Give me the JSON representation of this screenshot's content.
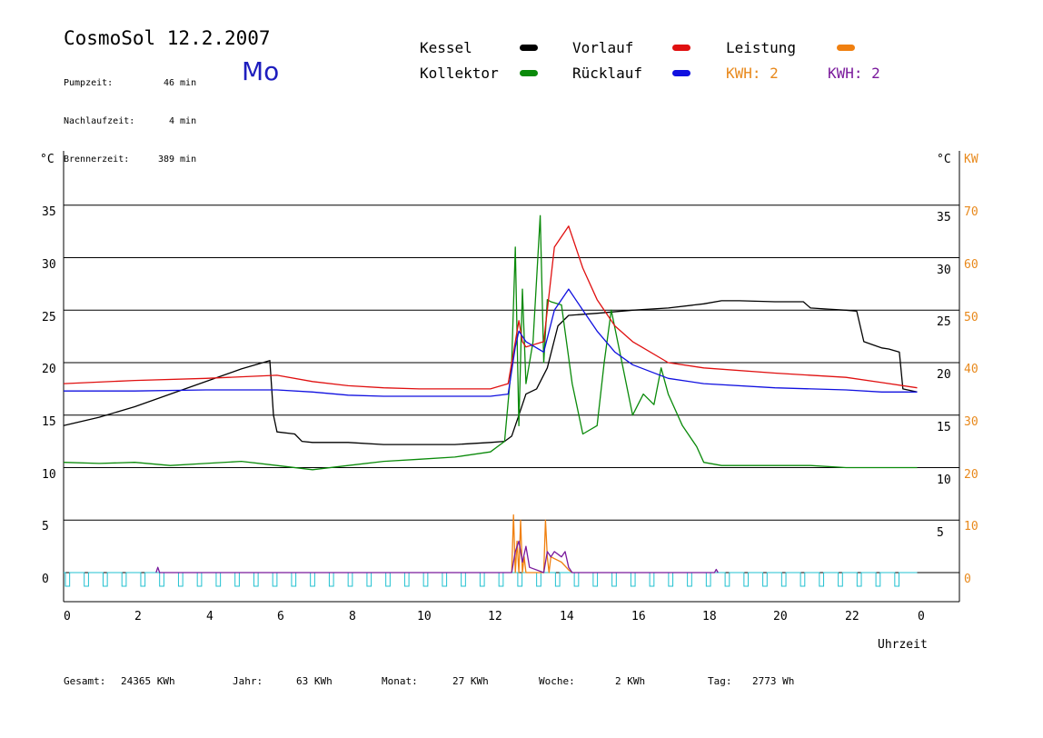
{
  "header": {
    "title": "CosmoSol 12.2.2007",
    "day": "Mo",
    "stats": [
      {
        "label": "Pumpzeit:",
        "value": "46",
        "unit": "min"
      },
      {
        "label": "Nachlaufzeit:",
        "value": "4",
        "unit": "min"
      },
      {
        "label": "Brennerzeit:",
        "value": "389",
        "unit": "min"
      }
    ]
  },
  "legend": {
    "kessel": {
      "label": "Kessel",
      "color": "#000000"
    },
    "kollektor": {
      "label": "Kollektor",
      "color": "#0a8a0a"
    },
    "vorlauf": {
      "label": "Vorlauf",
      "color": "#e01010"
    },
    "ruecklauf": {
      "label": "Rücklauf",
      "color": "#1010e0"
    },
    "leistung": {
      "label": "Leistung",
      "color": "#f08010"
    },
    "kwh1": "KWH: 2",
    "kwh2": "KWH: 2"
  },
  "axes": {
    "y_left_unit": "°C",
    "y_right_unit": "°C",
    "y_kw_unit": "KW",
    "x_label": "Uhrzeit",
    "x_ticks": [
      "0",
      "2",
      "4",
      "6",
      "8",
      "10",
      "12",
      "14",
      "16",
      "18",
      "20",
      "22",
      "0"
    ],
    "y_left_ticks": [
      "35",
      "30",
      "25",
      "20",
      "15",
      "10",
      "5",
      "0"
    ],
    "y_right_ticks": [
      "35",
      "30",
      "25",
      "20",
      "15",
      "10",
      "5"
    ],
    "kw_ticks": [
      "70",
      "60",
      "50",
      "40",
      "30",
      "20",
      "10",
      "0"
    ]
  },
  "footer": {
    "gesamt_label": "Gesamt:",
    "gesamt_value": "24365 KWh",
    "jahr_label": "Jahr:",
    "jahr_value": "63 KWh",
    "monat_label": "Monat:",
    "monat_value": "27 KWh",
    "woche_label": "Woche:",
    "woche_value": "2 KWh",
    "tag_label": "Tag:",
    "tag_value": "2773 Wh"
  },
  "chart_data": {
    "type": "line",
    "xlabel": "Uhrzeit",
    "ylabel": "°C",
    "xlim": [
      0,
      24
    ],
    "ylim": [
      0,
      40
    ],
    "y2lim": [
      0,
      80
    ],
    "grid": true,
    "series": [
      {
        "name": "Kessel",
        "color": "#000000",
        "x": [
          0,
          1,
          2,
          3,
          4,
          5,
          5.8,
          5.9,
          6,
          6.5,
          6.7,
          7,
          8,
          9,
          10,
          11,
          12,
          12.4,
          12.6,
          12.8,
          13,
          13.3,
          13.6,
          13.9,
          14.2,
          15,
          16,
          17,
          18,
          18.5,
          19,
          20,
          20.8,
          21,
          21.5,
          22,
          22.3,
          22.5,
          23,
          23.2,
          23.5,
          23.6,
          24
        ],
        "y": [
          14,
          14.8,
          15.8,
          17,
          18.2,
          19.4,
          20.2,
          15,
          13.4,
          13.2,
          12.5,
          12.4,
          12.4,
          12.2,
          12.2,
          12.2,
          12.4,
          12.5,
          13,
          15,
          17,
          17.5,
          19.5,
          23.5,
          24.5,
          24.7,
          25,
          25.2,
          25.6,
          25.9,
          25.9,
          25.8,
          25.8,
          25.2,
          25.1,
          25,
          24.9,
          22,
          21.4,
          21.3,
          21,
          17.5,
          17.2
        ]
      },
      {
        "name": "Kollektor",
        "color": "#0a8a0a",
        "x": [
          0,
          1,
          2,
          3,
          4,
          5,
          6,
          7,
          8,
          9,
          10,
          11,
          12,
          12.4,
          12.6,
          12.7,
          12.8,
          12.9,
          13,
          13.2,
          13.4,
          13.5,
          13.6,
          13.7,
          14,
          14.3,
          14.6,
          15,
          15.2,
          15.4,
          15.7,
          16,
          16.3,
          16.6,
          16.8,
          17,
          17.4,
          17.8,
          18,
          18.5,
          19,
          20,
          21,
          22,
          23,
          24
        ],
        "y": [
          10.5,
          10.4,
          10.5,
          10.2,
          10.4,
          10.6,
          10.2,
          9.8,
          10.2,
          10.6,
          10.8,
          11,
          11.5,
          12.5,
          20,
          31,
          14,
          27,
          18,
          22,
          34,
          20,
          26,
          25.8,
          25.5,
          18,
          13.2,
          14,
          20,
          25,
          20,
          15,
          17,
          16,
          19.5,
          17,
          14,
          12,
          10.5,
          10.2,
          10.2,
          10.2,
          10.2,
          10,
          10,
          10
        ]
      },
      {
        "name": "Vorlauf",
        "color": "#e01010",
        "x": [
          0,
          2,
          4,
          6,
          7,
          8,
          9,
          10,
          11,
          12,
          12.5,
          12.7,
          12.8,
          12.9,
          13,
          13.5,
          13.8,
          14,
          14.2,
          14.6,
          15,
          15.5,
          16,
          17,
          18,
          20,
          22,
          23,
          24
        ],
        "y": [
          18,
          18.3,
          18.5,
          18.8,
          18.2,
          17.8,
          17.6,
          17.5,
          17.5,
          17.5,
          18,
          22,
          24,
          22,
          21.5,
          22,
          31,
          32,
          33,
          29,
          26,
          23.5,
          22,
          20,
          19.5,
          19,
          18.6,
          18.1,
          17.6
        ]
      },
      {
        "name": "Rücklauf",
        "color": "#1010e0",
        "x": [
          0,
          2,
          4,
          6,
          7,
          8,
          9,
          10,
          11,
          12,
          12.5,
          12.7,
          12.8,
          12.9,
          13,
          13.5,
          13.8,
          14,
          14.2,
          14.6,
          15,
          15.5,
          16,
          17,
          18,
          20,
          22,
          23,
          24
        ],
        "y": [
          17.3,
          17.3,
          17.4,
          17.4,
          17.2,
          16.9,
          16.8,
          16.8,
          16.8,
          16.8,
          17,
          21.5,
          23,
          22.5,
          22,
          21,
          25,
          26,
          27,
          25,
          23,
          21,
          19.8,
          18.5,
          18,
          17.6,
          17.4,
          17.2,
          17.2
        ]
      },
      {
        "name": "Leistung",
        "color": "#f08010",
        "x": [
          12.6,
          12.65,
          12.7,
          12.75,
          12.8,
          12.85,
          12.9,
          12.95,
          13,
          13.5,
          13.55,
          13.6,
          13.65,
          13.7,
          14,
          14.2,
          14.3
        ],
        "y": [
          0,
          11,
          0,
          6,
          0,
          10,
          0,
          3,
          0,
          0,
          10,
          3,
          0,
          3,
          2,
          0.5,
          0
        ]
      },
      {
        "name": "KWH",
        "color": "#7a1a9c",
        "x": [
          2.6,
          2.65,
          2.7,
          12.6,
          12.7,
          12.8,
          12.9,
          13,
          13.1,
          13.5,
          13.6,
          13.7,
          13.8,
          14,
          14.1,
          14.2,
          14.3,
          18.3,
          18.35,
          18.4
        ],
        "y": [
          0,
          0.5,
          0,
          0,
          2,
          3,
          1,
          2.5,
          0.5,
          0,
          2,
          1.5,
          2,
          1.5,
          2,
          0.5,
          0,
          0,
          0.3,
          0
        ]
      }
    ]
  }
}
